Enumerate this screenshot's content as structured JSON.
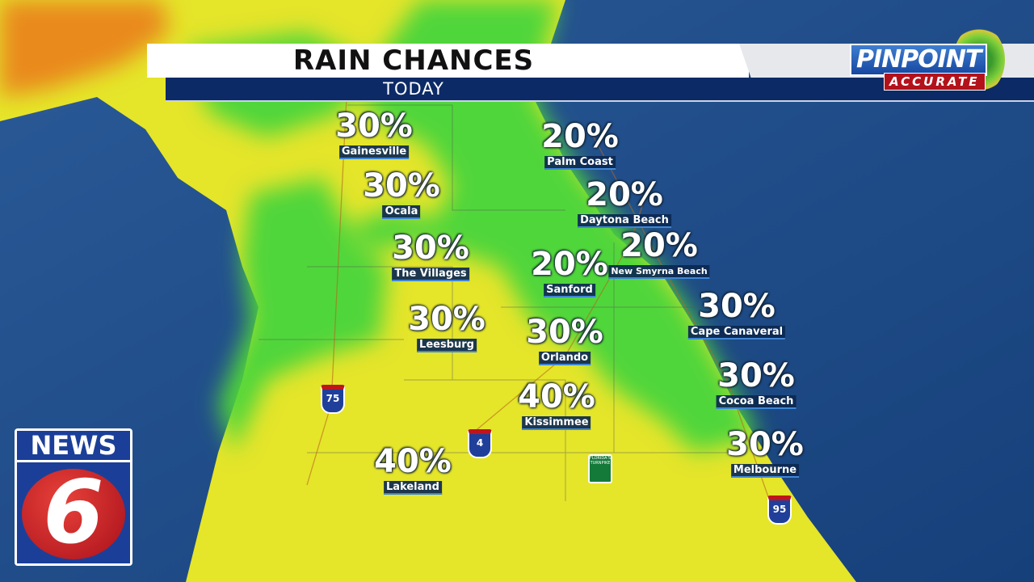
{
  "header": {
    "title": "RAIN CHANCES",
    "subtitle": "TODAY"
  },
  "branding": {
    "pinpoint_word": "PINPOINT",
    "pinpoint_tagline": "ACCURATE",
    "station_word": "NEWS",
    "station_number": "6"
  },
  "legend_colors": {
    "low_chance": "#e5e52a",
    "medium_chance": "#4fd63a",
    "higher_chance_region": "#e98a1e",
    "ocean": "#1f4f8c"
  },
  "cities": [
    {
      "name": "Gainesville",
      "chance": "30%"
    },
    {
      "name": "Palm Coast",
      "chance": "20%"
    },
    {
      "name": "Ocala",
      "chance": "30%"
    },
    {
      "name": "Daytona Beach",
      "chance": "20%"
    },
    {
      "name": "The Villages",
      "chance": "30%"
    },
    {
      "name": "New Smyrna Beach",
      "chance": "20%"
    },
    {
      "name": "Sanford",
      "chance": "20%"
    },
    {
      "name": "Cape Canaveral",
      "chance": "30%"
    },
    {
      "name": "Leesburg",
      "chance": "30%"
    },
    {
      "name": "Orlando",
      "chance": "30%"
    },
    {
      "name": "Cocoa Beach",
      "chance": "30%"
    },
    {
      "name": "Kissimmee",
      "chance": "40%"
    },
    {
      "name": "Melbourne",
      "chance": "30%"
    },
    {
      "name": "Lakeland",
      "chance": "40%"
    }
  ],
  "highways": [
    {
      "label": "75"
    },
    {
      "label": "4"
    },
    {
      "label": "95"
    }
  ],
  "turnpike_label": "FLORIDA'S TURNPIKE"
}
